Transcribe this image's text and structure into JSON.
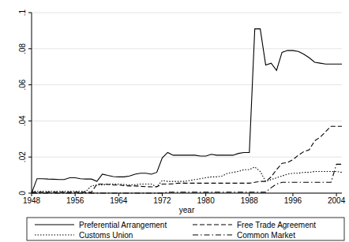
{
  "chart_data": {
    "type": "line",
    "x_label": "year",
    "x": [
      1948,
      1949,
      1950,
      1951,
      1952,
      1953,
      1954,
      1955,
      1956,
      1957,
      1958,
      1959,
      1960,
      1961,
      1962,
      1963,
      1964,
      1965,
      1966,
      1967,
      1968,
      1969,
      1970,
      1971,
      1972,
      1973,
      1974,
      1975,
      1976,
      1977,
      1978,
      1979,
      1980,
      1981,
      1982,
      1983,
      1984,
      1985,
      1986,
      1987,
      1988,
      1989,
      1990,
      1991,
      1992,
      1993,
      1994,
      1995,
      1996,
      1997,
      1998,
      1999,
      2000,
      2001,
      2002,
      2003,
      2004,
      2005
    ],
    "series": [
      {
        "name": "Preferential Arrangement",
        "color": "#000000",
        "line_style": "solid",
        "values": [
          0.0,
          0.008,
          0.008,
          0.0078,
          0.0077,
          0.0075,
          0.0075,
          0.0085,
          0.0085,
          0.008,
          0.0078,
          0.0078,
          0.0065,
          0.0105,
          0.0098,
          0.0092,
          0.009,
          0.009,
          0.0095,
          0.0105,
          0.011,
          0.011,
          0.0105,
          0.0115,
          0.0195,
          0.0225,
          0.021,
          0.021,
          0.021,
          0.021,
          0.021,
          0.0205,
          0.0205,
          0.0215,
          0.021,
          0.021,
          0.021,
          0.021,
          0.022,
          0.0225,
          0.0225,
          0.091,
          0.091,
          0.071,
          0.072,
          0.068,
          0.078,
          0.079,
          0.079,
          0.0785,
          0.077,
          0.075,
          0.0725,
          0.072,
          0.0715,
          0.0715,
          0.0715,
          0.0715
        ]
      },
      {
        "name": "Free Trade Agreement",
        "color": "#000000",
        "line_style": "dashed",
        "values": [
          0.0005,
          0.0005,
          0.0005,
          0.0005,
          0.0005,
          0.0005,
          0.0005,
          0.0005,
          0.0005,
          0.0005,
          0.0005,
          0.0005,
          0.005,
          0.005,
          0.0048,
          0.0045,
          0.0045,
          0.0042,
          0.004,
          0.004,
          0.0038,
          0.0036,
          0.0035,
          0.0035,
          0.005,
          0.005,
          0.0052,
          0.0055,
          0.0055,
          0.0055,
          0.0055,
          0.0055,
          0.0055,
          0.0055,
          0.0055,
          0.0055,
          0.0055,
          0.0055,
          0.0055,
          0.0055,
          0.0055,
          0.006,
          0.0065,
          0.0065,
          0.009,
          0.013,
          0.0165,
          0.017,
          0.0185,
          0.021,
          0.023,
          0.024,
          0.029,
          0.031,
          0.034,
          0.037,
          0.037,
          0.037
        ]
      },
      {
        "name": "Customs Union",
        "color": "#000000",
        "line_style": "dotted",
        "values": [
          0.001,
          0.001,
          0.001,
          0.001,
          0.001,
          0.001,
          0.001,
          0.001,
          0.001,
          0.001,
          0.001,
          0.004,
          0.0045,
          0.0045,
          0.005,
          0.005,
          0.005,
          0.0048,
          0.0045,
          0.0047,
          0.005,
          0.005,
          0.005,
          0.0035,
          0.007,
          0.0065,
          0.0065,
          0.0065,
          0.0065,
          0.007,
          0.0075,
          0.008,
          0.0085,
          0.009,
          0.009,
          0.0095,
          0.011,
          0.0115,
          0.012,
          0.013,
          0.013,
          0.0145,
          0.012,
          0.0065,
          0.0075,
          0.0085,
          0.0095,
          0.0105,
          0.011,
          0.011,
          0.0115,
          0.0115,
          0.012,
          0.012,
          0.012,
          0.012,
          0.012,
          0.0115
        ]
      },
      {
        "name": "Common Market",
        "color": "#000000",
        "line_style": "dashdot",
        "values": [
          0,
          0,
          0,
          0,
          0,
          0,
          0,
          0,
          0,
          0,
          0,
          0,
          0,
          0,
          0,
          0,
          0,
          0,
          0,
          0,
          0,
          0,
          0,
          0,
          0,
          0.0005,
          0.0005,
          0.0005,
          0.0005,
          0.0005,
          0.0005,
          0.0005,
          0.0005,
          0.0005,
          0.0005,
          0.0005,
          0.0005,
          0.0005,
          0.0005,
          0.0005,
          0.0005,
          0.0005,
          0.0005,
          0.0005,
          0.003,
          0.005,
          0.006,
          0.006,
          0.006,
          0.006,
          0.006,
          0.006,
          0.006,
          0.006,
          0.006,
          0.006,
          0.016,
          0.016
        ]
      }
    ],
    "xlim": [
      1948,
      2005
    ],
    "xticks": [
      1948,
      1956,
      1964,
      1972,
      1980,
      1988,
      1996,
      2004
    ],
    "ylim": [
      0,
      0.1
    ],
    "yticks": [
      0,
      {
        "value": 0.02,
        "label": ".02"
      },
      {
        "value": 0.04,
        "label": ".04"
      },
      {
        "value": 0.06,
        "label": ".06"
      },
      {
        "value": 0.08,
        "label": ".08"
      },
      {
        "value": 0.1,
        "label": ".1"
      }
    ],
    "grid": true,
    "legend": "bottom"
  }
}
